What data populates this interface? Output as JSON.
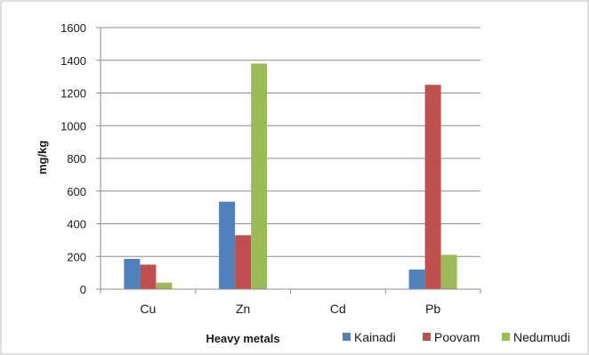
{
  "chart_data": {
    "type": "bar",
    "categories": [
      "Cu",
      "Zn",
      "Cd",
      "Pb"
    ],
    "series": [
      {
        "name": "Kainadi",
        "values": [
          185,
          535,
          0,
          120
        ],
        "color": "#4F81BD"
      },
      {
        "name": "Poovam",
        "values": [
          150,
          330,
          0,
          1250
        ],
        "color": "#C0504D"
      },
      {
        "name": "Nedumudi",
        "values": [
          40,
          1380,
          0,
          210
        ],
        "color": "#9BBB59"
      }
    ],
    "title": "",
    "xlabel": "Heavy metals",
    "ylabel": "mg/kg",
    "ylim": [
      0,
      1600
    ],
    "yticks": [
      0,
      200,
      400,
      600,
      800,
      1000,
      1200,
      1400,
      1600
    ],
    "grid": true,
    "legend": "bottom-right"
  }
}
